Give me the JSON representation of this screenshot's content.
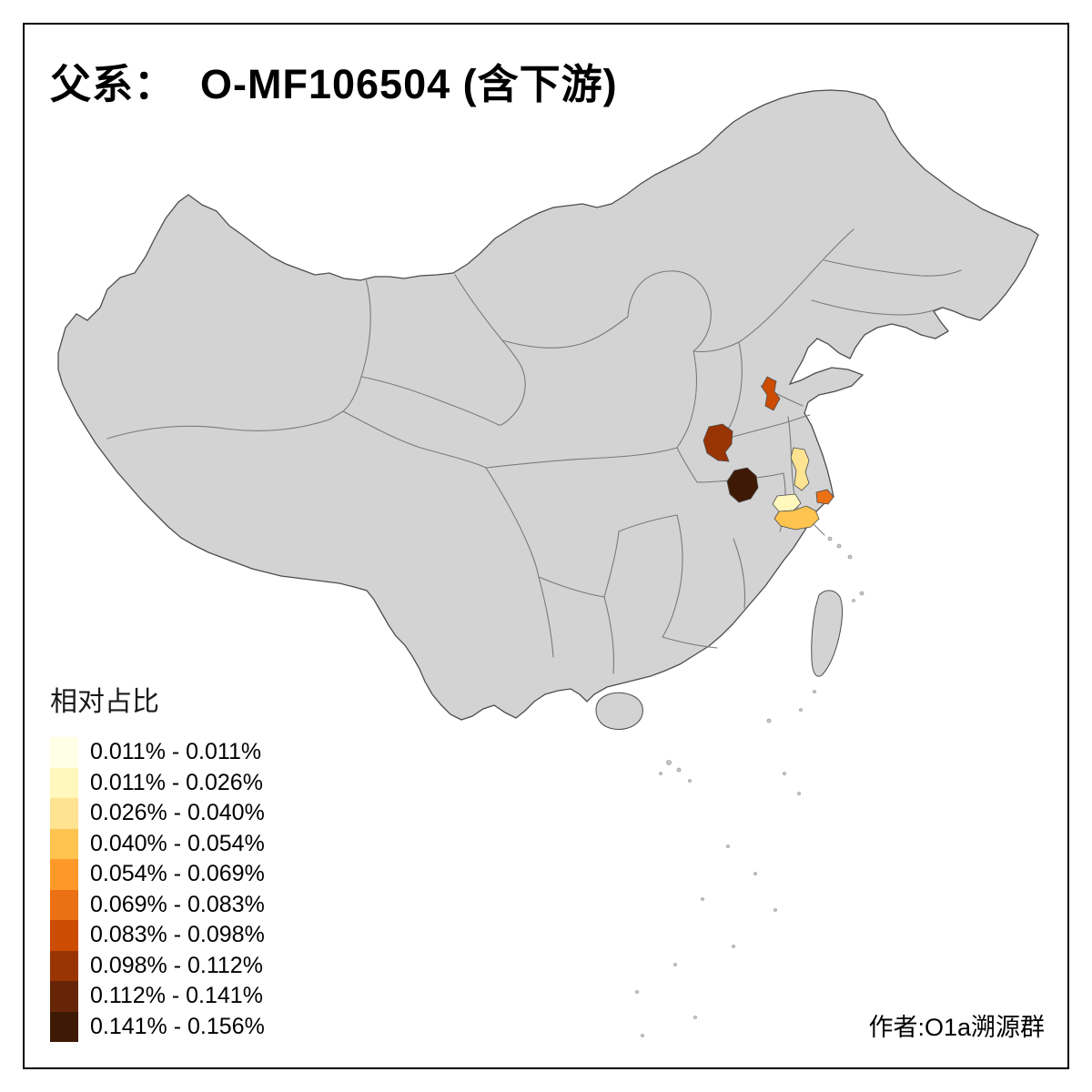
{
  "title": "父系：  O-MF106504 (含下游)",
  "author_credit": "作者:O1a溯源群",
  "legend": {
    "title": "相对占比",
    "items": [
      {
        "label": "0.011% - 0.011%",
        "color": "#FFFFE5"
      },
      {
        "label": "0.011% - 0.026%",
        "color": "#FFF7BC"
      },
      {
        "label": "0.026% - 0.040%",
        "color": "#FEE391"
      },
      {
        "label": "0.040% - 0.054%",
        "color": "#FEC44F"
      },
      {
        "label": "0.054% - 0.069%",
        "color": "#FE9929"
      },
      {
        "label": "0.069% - 0.083%",
        "color": "#EC7014"
      },
      {
        "label": "0.083% - 0.098%",
        "color": "#CC4C02"
      },
      {
        "label": "0.098% - 0.112%",
        "color": "#993404"
      },
      {
        "label": "0.112% - 0.141%",
        "color": "#662506"
      },
      {
        "label": "0.141% - 0.156%",
        "color": "#3E1A05"
      }
    ]
  },
  "map": {
    "base_fill": "#D3D3D3",
    "outline_color": "#4D4D4D",
    "province_border_color": "#7A7A7A",
    "regions": [
      {
        "name": "shandong-patch",
        "color": "#CC4C02"
      },
      {
        "name": "henan-patch",
        "color": "#993404"
      },
      {
        "name": "henan-south-patch",
        "color": "#3E1A05"
      },
      {
        "name": "jiangsu-north-patch",
        "color": "#FEE391"
      },
      {
        "name": "jiangsu-mid-patch",
        "color": "#FFF7BC"
      },
      {
        "name": "jiangsu-south-patch",
        "color": "#FEC44F"
      },
      {
        "name": "shanghai-patch",
        "color": "#EC7014"
      }
    ]
  }
}
